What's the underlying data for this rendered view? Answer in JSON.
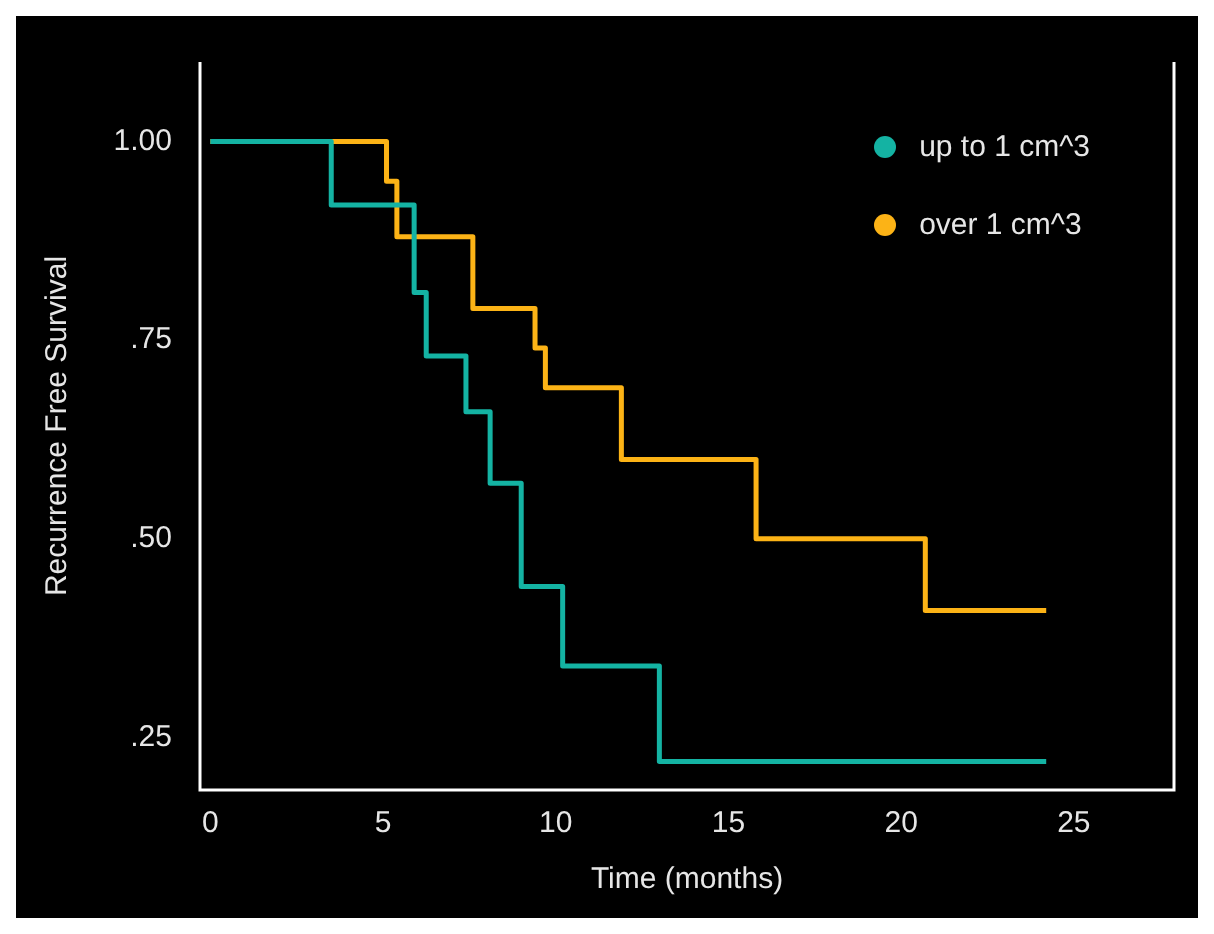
{
  "chart_data": {
    "type": "step",
    "xlabel": "Time (months)",
    "ylabel": "Recurrence Free Survival",
    "xlim": [
      -0.3,
      27.9
    ],
    "xticks": [
      0,
      5,
      10,
      15,
      20,
      25
    ],
    "ylim": [
      0.184,
      1.1
    ],
    "yticks": [
      {
        "value": 0.25,
        "label": ".25"
      },
      {
        "value": 0.5,
        "label": ".50"
      },
      {
        "value": 0.75,
        "label": ".75"
      },
      {
        "value": 1,
        "label": "1.00"
      }
    ],
    "series": [
      {
        "name": "up to 1 cm^3",
        "color": "#14b3a3",
        "x": [
          0,
          3.5,
          5.9,
          6.25,
          7.4,
          8.1,
          9,
          10.2,
          13,
          24.2
        ],
        "values": [
          1,
          0.92,
          0.81,
          0.73,
          0.66,
          0.57,
          0.44,
          0.34,
          0.22,
          0.22
        ]
      },
      {
        "name": "over 1 cm^3",
        "color": "#fcb316",
        "x": [
          0,
          5.1,
          5.4,
          7.6,
          9.4,
          9.7,
          11.9,
          15.8,
          20.7,
          24.2
        ],
        "values": [
          1,
          0.95,
          0.88,
          0.79,
          0.74,
          0.69,
          0.6,
          0.5,
          0.41,
          0.41
        ]
      }
    ],
    "grid": false,
    "legend": "top right",
    "marker": "none",
    "line_style": "solid"
  }
}
